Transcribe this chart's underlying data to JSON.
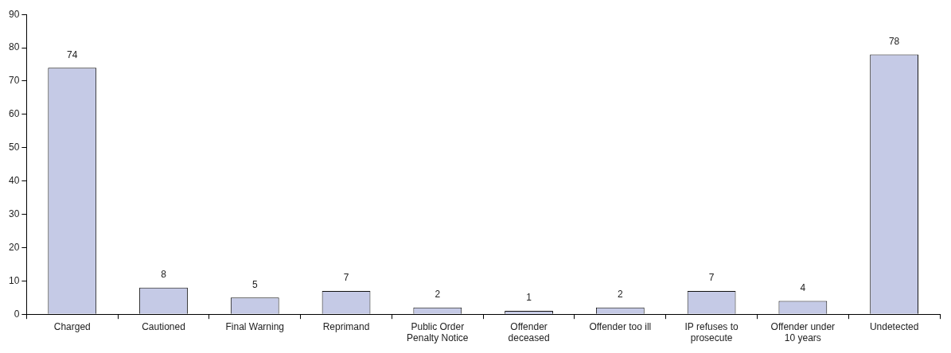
{
  "chart_data": {
    "type": "bar",
    "categories": [
      "Charged",
      "Cautioned",
      "Final Warning",
      "Reprimand",
      "Public Order Penalty Notice",
      "Offender deceased",
      "Offender too ill",
      "IP refuses to prosecute",
      "Offender under 10 years",
      "Undetected"
    ],
    "values": [
      74,
      8,
      5,
      7,
      2,
      1,
      2,
      7,
      4,
      78
    ],
    "color": "#c5cae6",
    "ylim": [
      0,
      90
    ],
    "yticks": [
      0,
      10,
      20,
      30,
      40,
      50,
      60,
      70,
      80,
      90
    ],
    "grid": false,
    "legend": false,
    "data_labels": true
  }
}
